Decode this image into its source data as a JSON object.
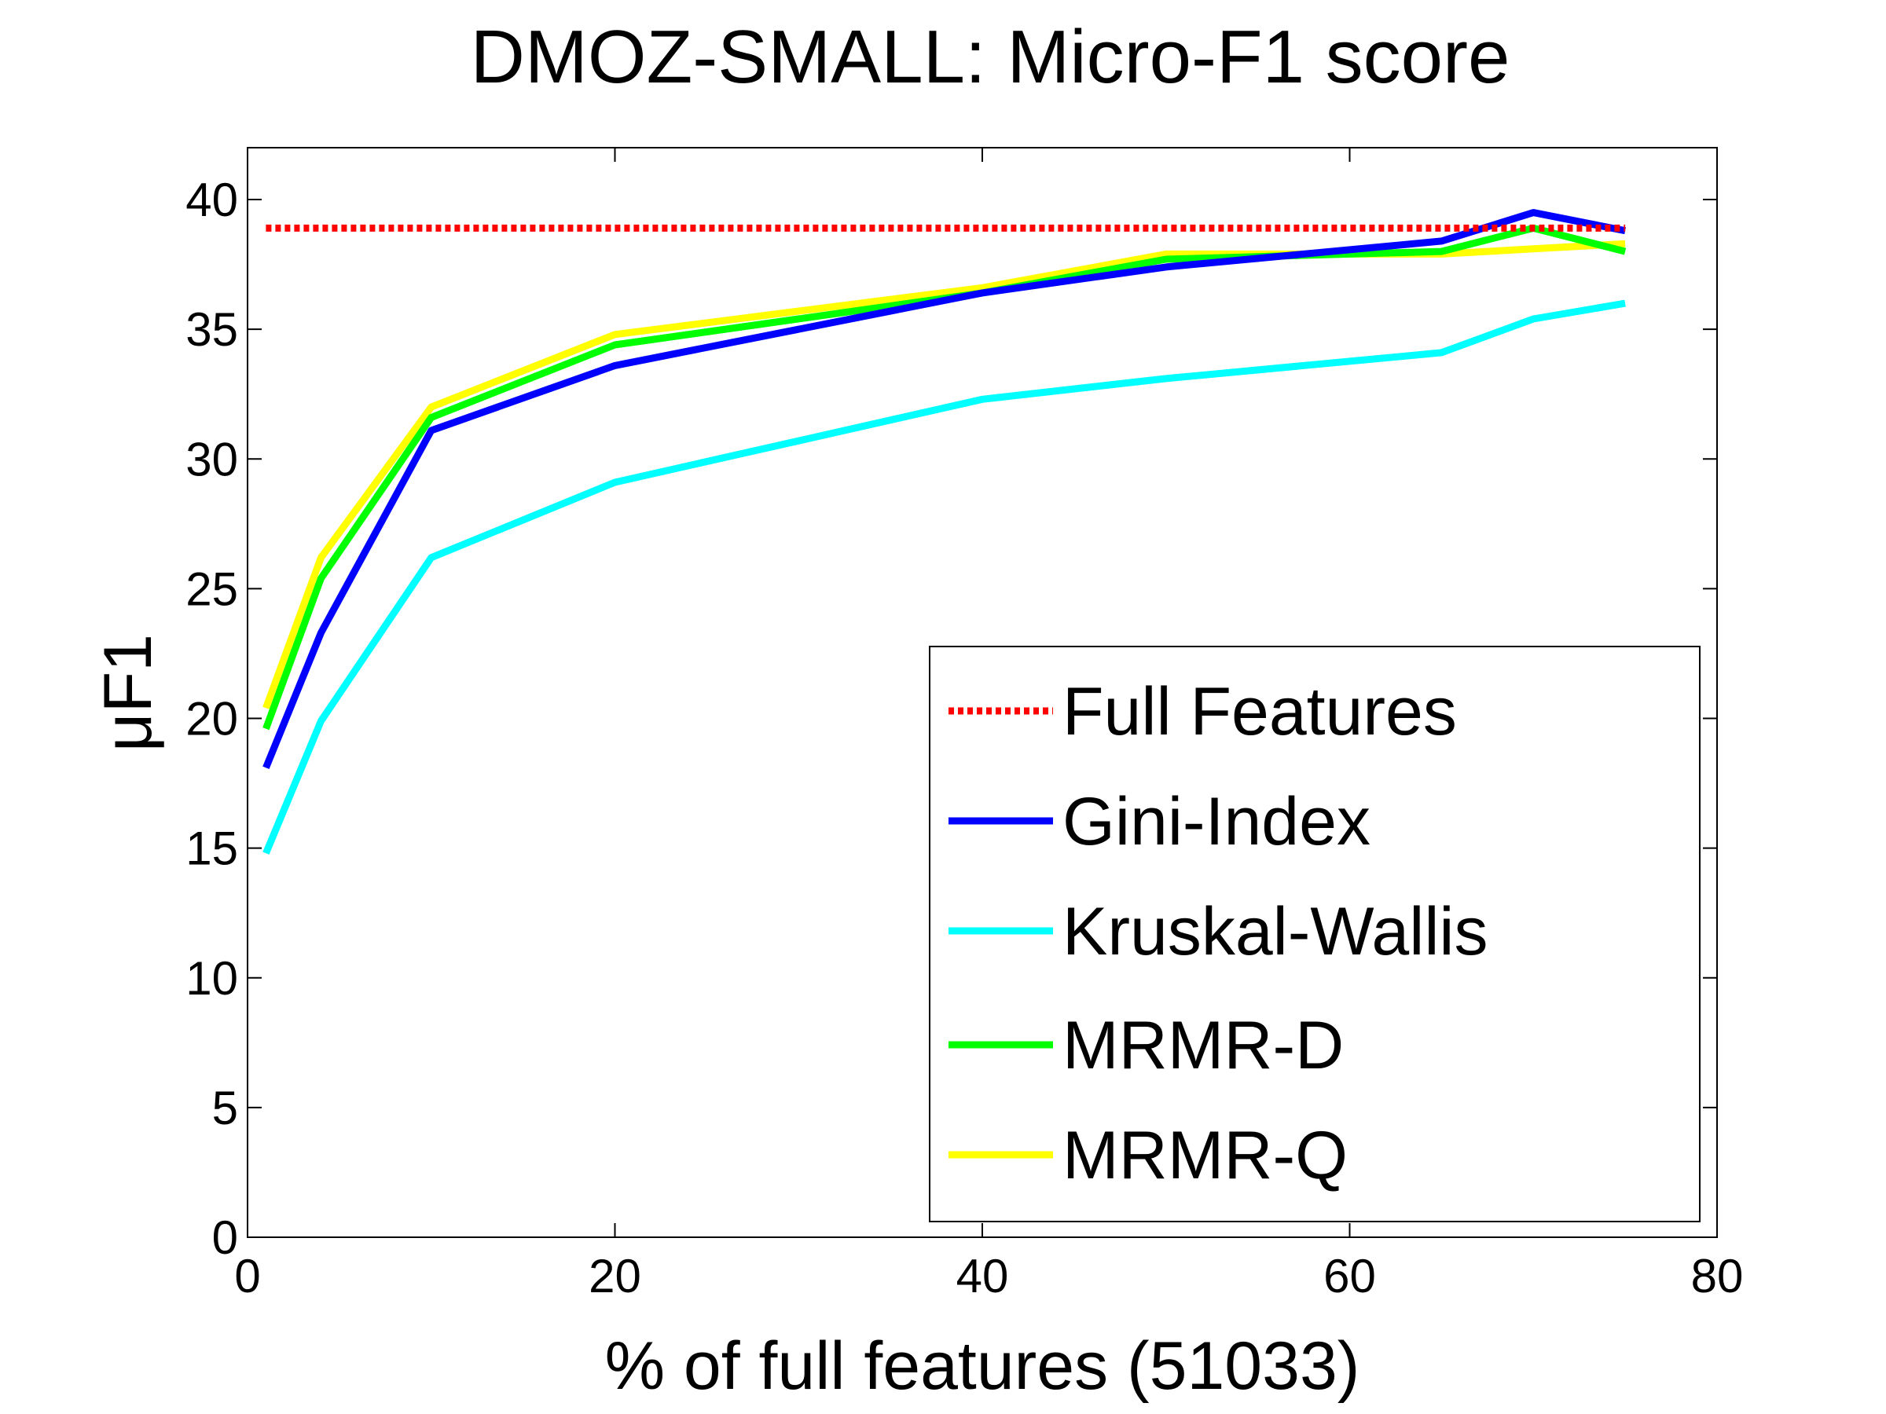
{
  "chart_data": {
    "type": "line",
    "title": "DMOZ-SMALL: Micro-F1 score",
    "xlabel": "% of full features (51033)",
    "ylabel": "μF1",
    "xlim": [
      0,
      80
    ],
    "ylim": [
      0,
      42
    ],
    "xticks": [
      0,
      20,
      40,
      60,
      80
    ],
    "yticks": [
      0,
      5,
      10,
      15,
      20,
      25,
      30,
      35,
      40
    ],
    "legend_position": "bottom-right",
    "grid": false,
    "series": [
      {
        "name": "Full Features",
        "color": "#ff0000",
        "style": "dotted",
        "x": [
          1,
          75
        ],
        "y": [
          38.9,
          38.9
        ]
      },
      {
        "name": "Gini-Index",
        "color": "#0000ff",
        "style": "solid",
        "x": [
          1,
          4,
          10,
          20,
          40,
          50,
          65,
          70,
          75
        ],
        "y": [
          18.1,
          23.3,
          31.1,
          33.6,
          36.4,
          37.4,
          38.4,
          39.5,
          38.8
        ]
      },
      {
        "name": "Kruskal-Wallis",
        "color": "#00ffff",
        "style": "solid",
        "x": [
          1,
          4,
          10,
          20,
          40,
          50,
          65,
          70,
          75
        ],
        "y": [
          14.8,
          19.9,
          26.2,
          29.1,
          32.3,
          33.1,
          34.1,
          35.4,
          36.0
        ]
      },
      {
        "name": "MRMR-D",
        "color": "#00ff00",
        "style": "solid",
        "x": [
          1,
          4,
          10,
          20,
          40,
          50,
          65,
          70,
          75
        ],
        "y": [
          19.6,
          25.4,
          31.6,
          34.4,
          36.4,
          37.7,
          38.0,
          38.9,
          38.0
        ]
      },
      {
        "name": "MRMR-Q",
        "color": "#ffff00",
        "style": "solid",
        "x": [
          1,
          4,
          10,
          20,
          40,
          50,
          65,
          70,
          75
        ],
        "y": [
          20.4,
          26.2,
          32.0,
          34.8,
          36.6,
          37.9,
          37.9,
          38.1,
          38.3
        ]
      }
    ]
  }
}
